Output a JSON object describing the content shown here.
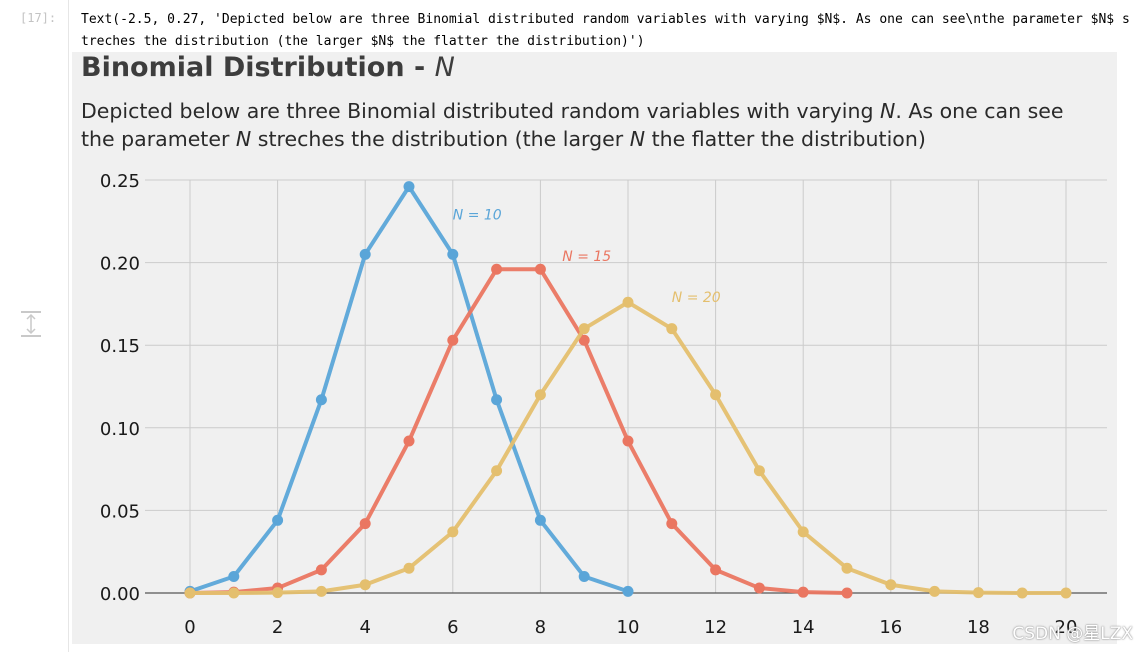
{
  "cell": {
    "prompt": "[17]:",
    "output_text": "Text(-2.5, 0.27, 'Depicted below are three Binomial distributed random variables with varying $N$. As one can see\\nthe parameter $N$ streches the distribution (the larger $N$ the flatter the distribution)')"
  },
  "figure": {
    "title_main": "Binomial Distribution - ",
    "title_symbol": "N",
    "subtitle_parts": [
      "Depicted below are three Binomial distributed random variables with varying ",
      "N",
      ". As one can see the parameter ",
      "N",
      " streches the distribution (the larger ",
      "N",
      " the flatter the distribution)"
    ]
  },
  "chart_data": {
    "type": "line",
    "title": "Binomial Distribution - N",
    "xlabel": "",
    "ylabel": "",
    "xlim": [
      -1,
      21
    ],
    "ylim": [
      0,
      0.25
    ],
    "xticks": [
      0,
      2,
      4,
      6,
      8,
      10,
      12,
      14,
      16,
      18,
      20
    ],
    "yticks": [
      0.0,
      0.05,
      0.1,
      0.15,
      0.2,
      0.25
    ],
    "ytick_labels": [
      "0.00",
      "0.05",
      "0.10",
      "0.15",
      "0.20",
      "0.25"
    ],
    "grid": true,
    "series": [
      {
        "name": "N = 10",
        "label_text": "N = 10",
        "color": "#5aa5d8",
        "x": [
          0,
          1,
          2,
          3,
          4,
          5,
          6,
          7,
          8,
          9,
          10
        ],
        "y": [
          0.001,
          0.01,
          0.044,
          0.117,
          0.205,
          0.246,
          0.205,
          0.117,
          0.044,
          0.01,
          0.001
        ]
      },
      {
        "name": "N = 15",
        "label_text": "N = 15",
        "color": "#ea7661",
        "x": [
          0,
          1,
          2,
          3,
          4,
          5,
          6,
          7,
          8,
          9,
          10,
          11,
          12,
          13,
          14,
          15
        ],
        "y": [
          0.0,
          0.0005,
          0.003,
          0.014,
          0.042,
          0.092,
          0.153,
          0.196,
          0.196,
          0.153,
          0.092,
          0.042,
          0.014,
          0.003,
          0.0005,
          0.0
        ]
      },
      {
        "name": "N = 20",
        "label_text": "N = 20",
        "color": "#e4bf6e",
        "x": [
          0,
          1,
          2,
          3,
          4,
          5,
          6,
          7,
          8,
          9,
          10,
          11,
          12,
          13,
          14,
          15,
          16,
          17,
          18,
          19,
          20
        ],
        "y": [
          0.0,
          0.0,
          0.0002,
          0.001,
          0.005,
          0.015,
          0.037,
          0.074,
          0.12,
          0.16,
          0.176,
          0.16,
          0.12,
          0.074,
          0.037,
          0.015,
          0.005,
          0.001,
          0.0002,
          0.0,
          0.0
        ]
      }
    ],
    "annotations": [
      {
        "series": 0,
        "x": 6.0,
        "y": 0.226
      },
      {
        "series": 1,
        "x": 8.5,
        "y": 0.201
      },
      {
        "series": 2,
        "x": 11.0,
        "y": 0.176
      }
    ]
  },
  "watermark": "CSDN @星LZX",
  "icons": {
    "collapse": "collapse-output-icon"
  }
}
